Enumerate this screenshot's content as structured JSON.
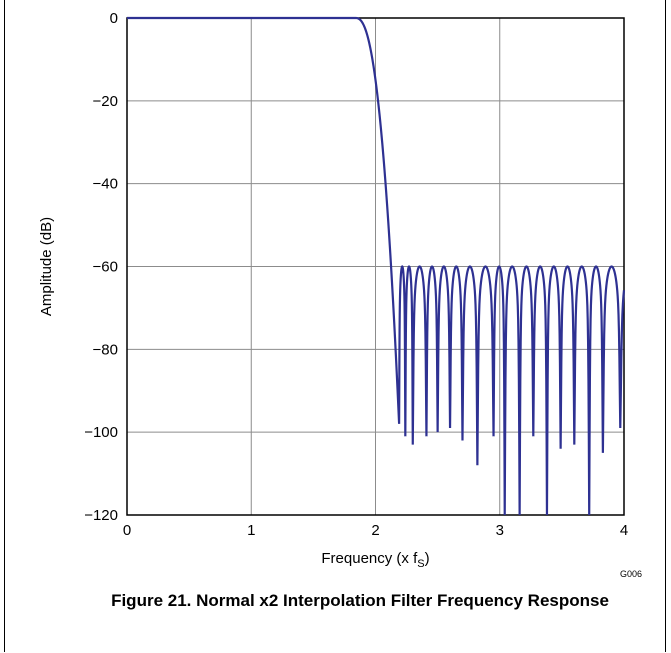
{
  "figure": {
    "caption": "Figure 21. Normal x2 Interpolation Filter Frequency Response",
    "code": "G006"
  },
  "chart_data": {
    "type": "line",
    "xlabel": "Frequency (x f",
    "xlabel_sub": "S",
    "xlabel_end": ")",
    "ylabel": "Amplitude (dB)",
    "xlim": [
      0,
      4
    ],
    "ylim": [
      -120,
      0
    ],
    "xticks": [
      0,
      1,
      2,
      3,
      4
    ],
    "yticks": [
      0,
      -20,
      -40,
      -60,
      -80,
      -100,
      -120
    ],
    "xtick_labels": [
      "0",
      "1",
      "2",
      "3",
      "4"
    ],
    "ytick_labels": [
      "0",
      "−20",
      "−40",
      "−60",
      "−80",
      "−100",
      "−120"
    ],
    "grid": true,
    "line_color": "#2e3192",
    "passband_edge": 1.84,
    "stopband_start": 2.19,
    "stopband_floor": -60,
    "lobe_nulls": [
      {
        "x": 2.19,
        "y": -98
      },
      {
        "x": 2.24,
        "y": -101
      },
      {
        "x": 2.3,
        "y": -103
      },
      {
        "x": 2.41,
        "y": -101
      },
      {
        "x": 2.5,
        "y": -100
      },
      {
        "x": 2.6,
        "y": -99
      },
      {
        "x": 2.7,
        "y": -102
      },
      {
        "x": 2.82,
        "y": -108
      },
      {
        "x": 2.95,
        "y": -101
      },
      {
        "x": 3.04,
        "y": -120
      },
      {
        "x": 3.16,
        "y": -120
      },
      {
        "x": 3.27,
        "y": -101
      },
      {
        "x": 3.38,
        "y": -120
      },
      {
        "x": 3.49,
        "y": -104
      },
      {
        "x": 3.6,
        "y": -103
      },
      {
        "x": 3.72,
        "y": -120
      },
      {
        "x": 3.83,
        "y": -105
      },
      {
        "x": 3.97,
        "y": -99
      }
    ]
  }
}
